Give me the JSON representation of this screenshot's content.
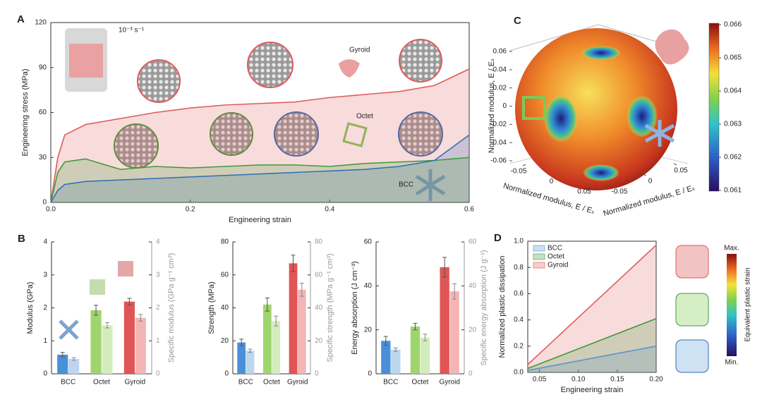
{
  "chart_data": [
    {
      "type": "line",
      "panel": "A",
      "xlabel": "Engineering strain",
      "ylabel": "Engineering stress (MPa)",
      "annotation": "10⁻³ s⁻¹",
      "x": [
        0,
        0.01,
        0.02,
        0.05,
        0.1,
        0.15,
        0.2,
        0.25,
        0.3,
        0.35,
        0.4,
        0.45,
        0.5,
        0.55,
        0.6
      ],
      "series": [
        {
          "name": "Gyroid",
          "color": "#e05a5a",
          "values": [
            0,
            30,
            45,
            52,
            56,
            60,
            63,
            65,
            66,
            67,
            70,
            72,
            74,
            78,
            89
          ]
        },
        {
          "name": "Octet",
          "color": "#3f9a3a",
          "values": [
            0,
            20,
            27,
            29,
            22,
            24,
            23,
            24,
            25,
            25,
            24,
            26,
            27,
            28,
            30
          ]
        },
        {
          "name": "BCC",
          "color": "#2f6fb5",
          "values": [
            0,
            8,
            12,
            14,
            15,
            16,
            17,
            18,
            19,
            20,
            21,
            22,
            24,
            28,
            45
          ]
        }
      ],
      "fill": true,
      "legend": "inline",
      "xlim": [
        0,
        0.6
      ],
      "xticks": [
        {
          "value": 0,
          "label": "0.0"
        },
        0.2,
        0.4,
        0.6
      ],
      "ylim": [
        0,
        120
      ],
      "yticks": [
        0,
        30,
        60,
        90,
        120
      ]
    },
    {
      "type": "bar",
      "panel": "B",
      "ylabel": "Modulus (GPa)",
      "y2label": "Specific modulus (GPa g⁻¹ cm³)",
      "categories": [
        "BCC",
        "Octet",
        "Gyroid"
      ],
      "series": [
        {
          "colors": [
            "#4a90d9",
            "#9fd46e",
            "#e05555"
          ],
          "values": [
            0.58,
            1.93,
            2.19
          ],
          "errors": [
            0.07,
            0.15,
            0.1
          ]
        },
        {
          "axis": "y2",
          "colors": [
            "#bcd6f0",
            "#d3ecbd",
            "#f4b5b5"
          ],
          "values": [
            0.45,
            1.47,
            1.7
          ],
          "errors": [
            0.04,
            0.08,
            0.1
          ]
        }
      ],
      "ylim": [
        0,
        4
      ],
      "yticks": [
        0,
        1,
        2,
        3,
        4
      ],
      "y2lim": [
        0,
        4
      ],
      "y2ticks": [
        0,
        1,
        2,
        3,
        4
      ]
    },
    {
      "type": "bar",
      "ylabel": "Strength (MPa)",
      "y2label": "Specific strength (MPa g⁻¹ cm³)",
      "categories": [
        "BCC",
        "Octet",
        "Gyroid"
      ],
      "series": [
        {
          "colors": [
            "#4a90d9",
            "#9fd46e",
            "#e05555"
          ],
          "values": [
            19,
            42,
            67
          ],
          "errors": [
            2,
            4,
            5
          ]
        },
        {
          "axis": "y2",
          "colors": [
            "#bcd6f0",
            "#d3ecbd",
            "#f4b5b5"
          ],
          "values": [
            14,
            32,
            51
          ],
          "errors": [
            1,
            3,
            4
          ]
        }
      ],
      "ylim": [
        0,
        80
      ],
      "yticks": [
        0,
        20,
        40,
        60,
        80
      ],
      "y2lim": [
        0,
        80
      ],
      "y2ticks": [
        0,
        20,
        40,
        60,
        80
      ]
    },
    {
      "type": "bar",
      "ylabel": "Energy absorption (J cm⁻³)",
      "y2label": "Specific energy absorption (J g⁻¹)",
      "categories": [
        "BCC",
        "Octet",
        "Gyroid"
      ],
      "series": [
        {
          "colors": [
            "#4a90d9",
            "#9fd46e",
            "#e05555"
          ],
          "values": [
            15,
            21.5,
            48.5
          ],
          "errors": [
            2,
            1.5,
            4.5
          ]
        },
        {
          "axis": "y2",
          "colors": [
            "#bcd6f0",
            "#d3ecbd",
            "#f4b5b5"
          ],
          "values": [
            11,
            16.5,
            37.5
          ],
          "errors": [
            0.8,
            1.5,
            3.5
          ]
        }
      ],
      "ylim": [
        0,
        60
      ],
      "yticks": [
        0,
        20,
        40,
        60
      ],
      "y2lim": [
        0,
        60
      ],
      "y2ticks": [
        0,
        20,
        40,
        60
      ]
    },
    {
      "type": "surface3d",
      "panel": "C",
      "xlabel": "Normalized modulus, E / Eₛ",
      "ylabel": "Normalized modulus, E / Eₛ",
      "zlabel": "Normalized modulus, E / Eₛ",
      "xlim": [
        -0.05,
        0.05
      ],
      "xticks": [
        -0.05,
        0,
        0.05
      ],
      "ylim": [
        -0.05,
        0.05
      ],
      "yticks": [
        -0.05,
        0,
        0.05
      ],
      "zlim": [
        -0.06,
        0.06
      ],
      "zticks": [
        -0.06,
        -0.04,
        -0.02,
        0,
        0.02,
        0.04,
        0.06
      ],
      "clim": [
        0.061,
        0.066
      ],
      "cticks": [
        0.061,
        0.062,
        0.063,
        0.064,
        0.065,
        0.066
      ]
    },
    {
      "type": "line",
      "panel": "D",
      "xlabel": "Engineering strain",
      "ylabel": "Normalized plastic dissipation",
      "x": [
        0.035,
        0.2
      ],
      "series": [
        {
          "name": "BCC",
          "color": "#5b93c9",
          "values": [
            0.015,
            0.2
          ]
        },
        {
          "name": "Octet",
          "color": "#3f9a3a",
          "values": [
            0.03,
            0.41
          ]
        },
        {
          "name": "Gyroid",
          "color": "#e05a5a",
          "values": [
            0.06,
            0.97
          ]
        }
      ],
      "fill": true,
      "legend": "upper left",
      "xlim": [
        0.035,
        0.2
      ],
      "xticks": [
        0.05,
        {
          "value": 0.1,
          "label": "0.10"
        },
        0.15,
        {
          "value": 0.2,
          "label": "0.20"
        }
      ],
      "ylim": [
        0,
        1
      ],
      "yticks": [
        {
          "value": 0,
          "label": "0.0"
        },
        0.2,
        0.4,
        0.6,
        0.8,
        {
          "value": 1,
          "label": "1.0"
        }
      ],
      "colorbar": {
        "label": "Equivalent plastic strain",
        "max_label": "Max.",
        "min_label": "Min."
      }
    }
  ]
}
